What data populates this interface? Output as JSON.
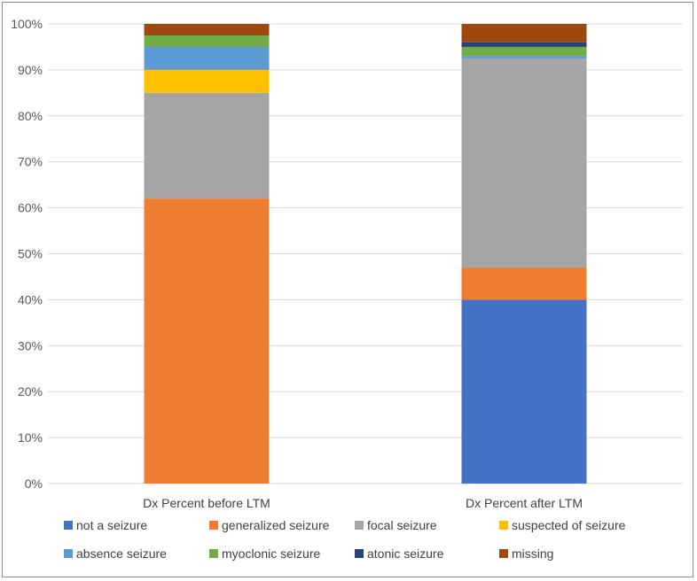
{
  "chart_data": {
    "type": "bar",
    "stacked": true,
    "categories": [
      "Dx Percent before LTM",
      "Dx Percent after LTM"
    ],
    "ylim": [
      0,
      100
    ],
    "yticks": [
      "0%",
      "10%",
      "20%",
      "30%",
      "40%",
      "50%",
      "60%",
      "70%",
      "80%",
      "90%",
      "100%"
    ],
    "ytick_values": [
      0,
      10,
      20,
      30,
      40,
      50,
      60,
      70,
      80,
      90,
      100
    ],
    "grid": true,
    "legend_position": "bottom",
    "series": [
      {
        "name": "not a seizure",
        "color": "#4472C4",
        "values": [
          0,
          40
        ]
      },
      {
        "name": "generalized seizure",
        "color": "#ED7D31",
        "values": [
          62,
          7
        ]
      },
      {
        "name": "focal seizure",
        "color": "#A5A5A5",
        "values": [
          23,
          45.5
        ]
      },
      {
        "name": "suspected of seizure",
        "color": "#FFC000",
        "values": [
          5,
          0
        ]
      },
      {
        "name": "absence seizure",
        "color": "#5B9BD5",
        "values": [
          5,
          0.5
        ]
      },
      {
        "name": "myoclonic seizure",
        "color": "#70AD47",
        "values": [
          2.5,
          2
        ]
      },
      {
        "name": "atonic seizure",
        "color": "#264478",
        "values": [
          0,
          1
        ]
      },
      {
        "name": "missing",
        "color": "#9E480E",
        "values": [
          2.5,
          4
        ]
      }
    ]
  }
}
